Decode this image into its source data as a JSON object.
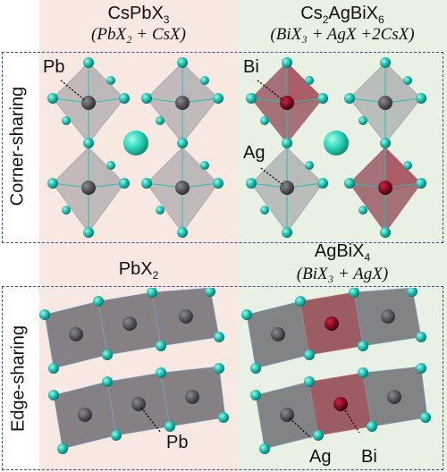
{
  "panels": {
    "top_left": {
      "title": "CsPbX",
      "title_sub": "3",
      "formula": "(PbX₂ + CsX)",
      "label_metal": "Pb"
    },
    "top_right": {
      "title_a": "Cs",
      "title_sub1": "2",
      "title_b": "AgBiX",
      "title_sub2": "6",
      "formula": "(BiX₃ + AgX +2CsX)",
      "label_bi": "Bi",
      "label_ag": "Ag"
    },
    "bottom_left": {
      "title": "PbX",
      "title_sub": "2",
      "label_metal": "Pb"
    },
    "bottom_right": {
      "title": "AgBiX",
      "title_sub": "4",
      "formula": "(BiX₃ + AgX)",
      "label_ag": "Ag",
      "label_bi": "Bi"
    }
  },
  "row_labels": {
    "top": "Corner-sharing",
    "bottom": "Edge-sharing"
  },
  "colors": {
    "halide": "#27c3b3",
    "cs": "#2fd8bd",
    "pb_octa": "#6d6d72",
    "bi_octa": "#8a2030",
    "ag_octa": "#777777"
  }
}
